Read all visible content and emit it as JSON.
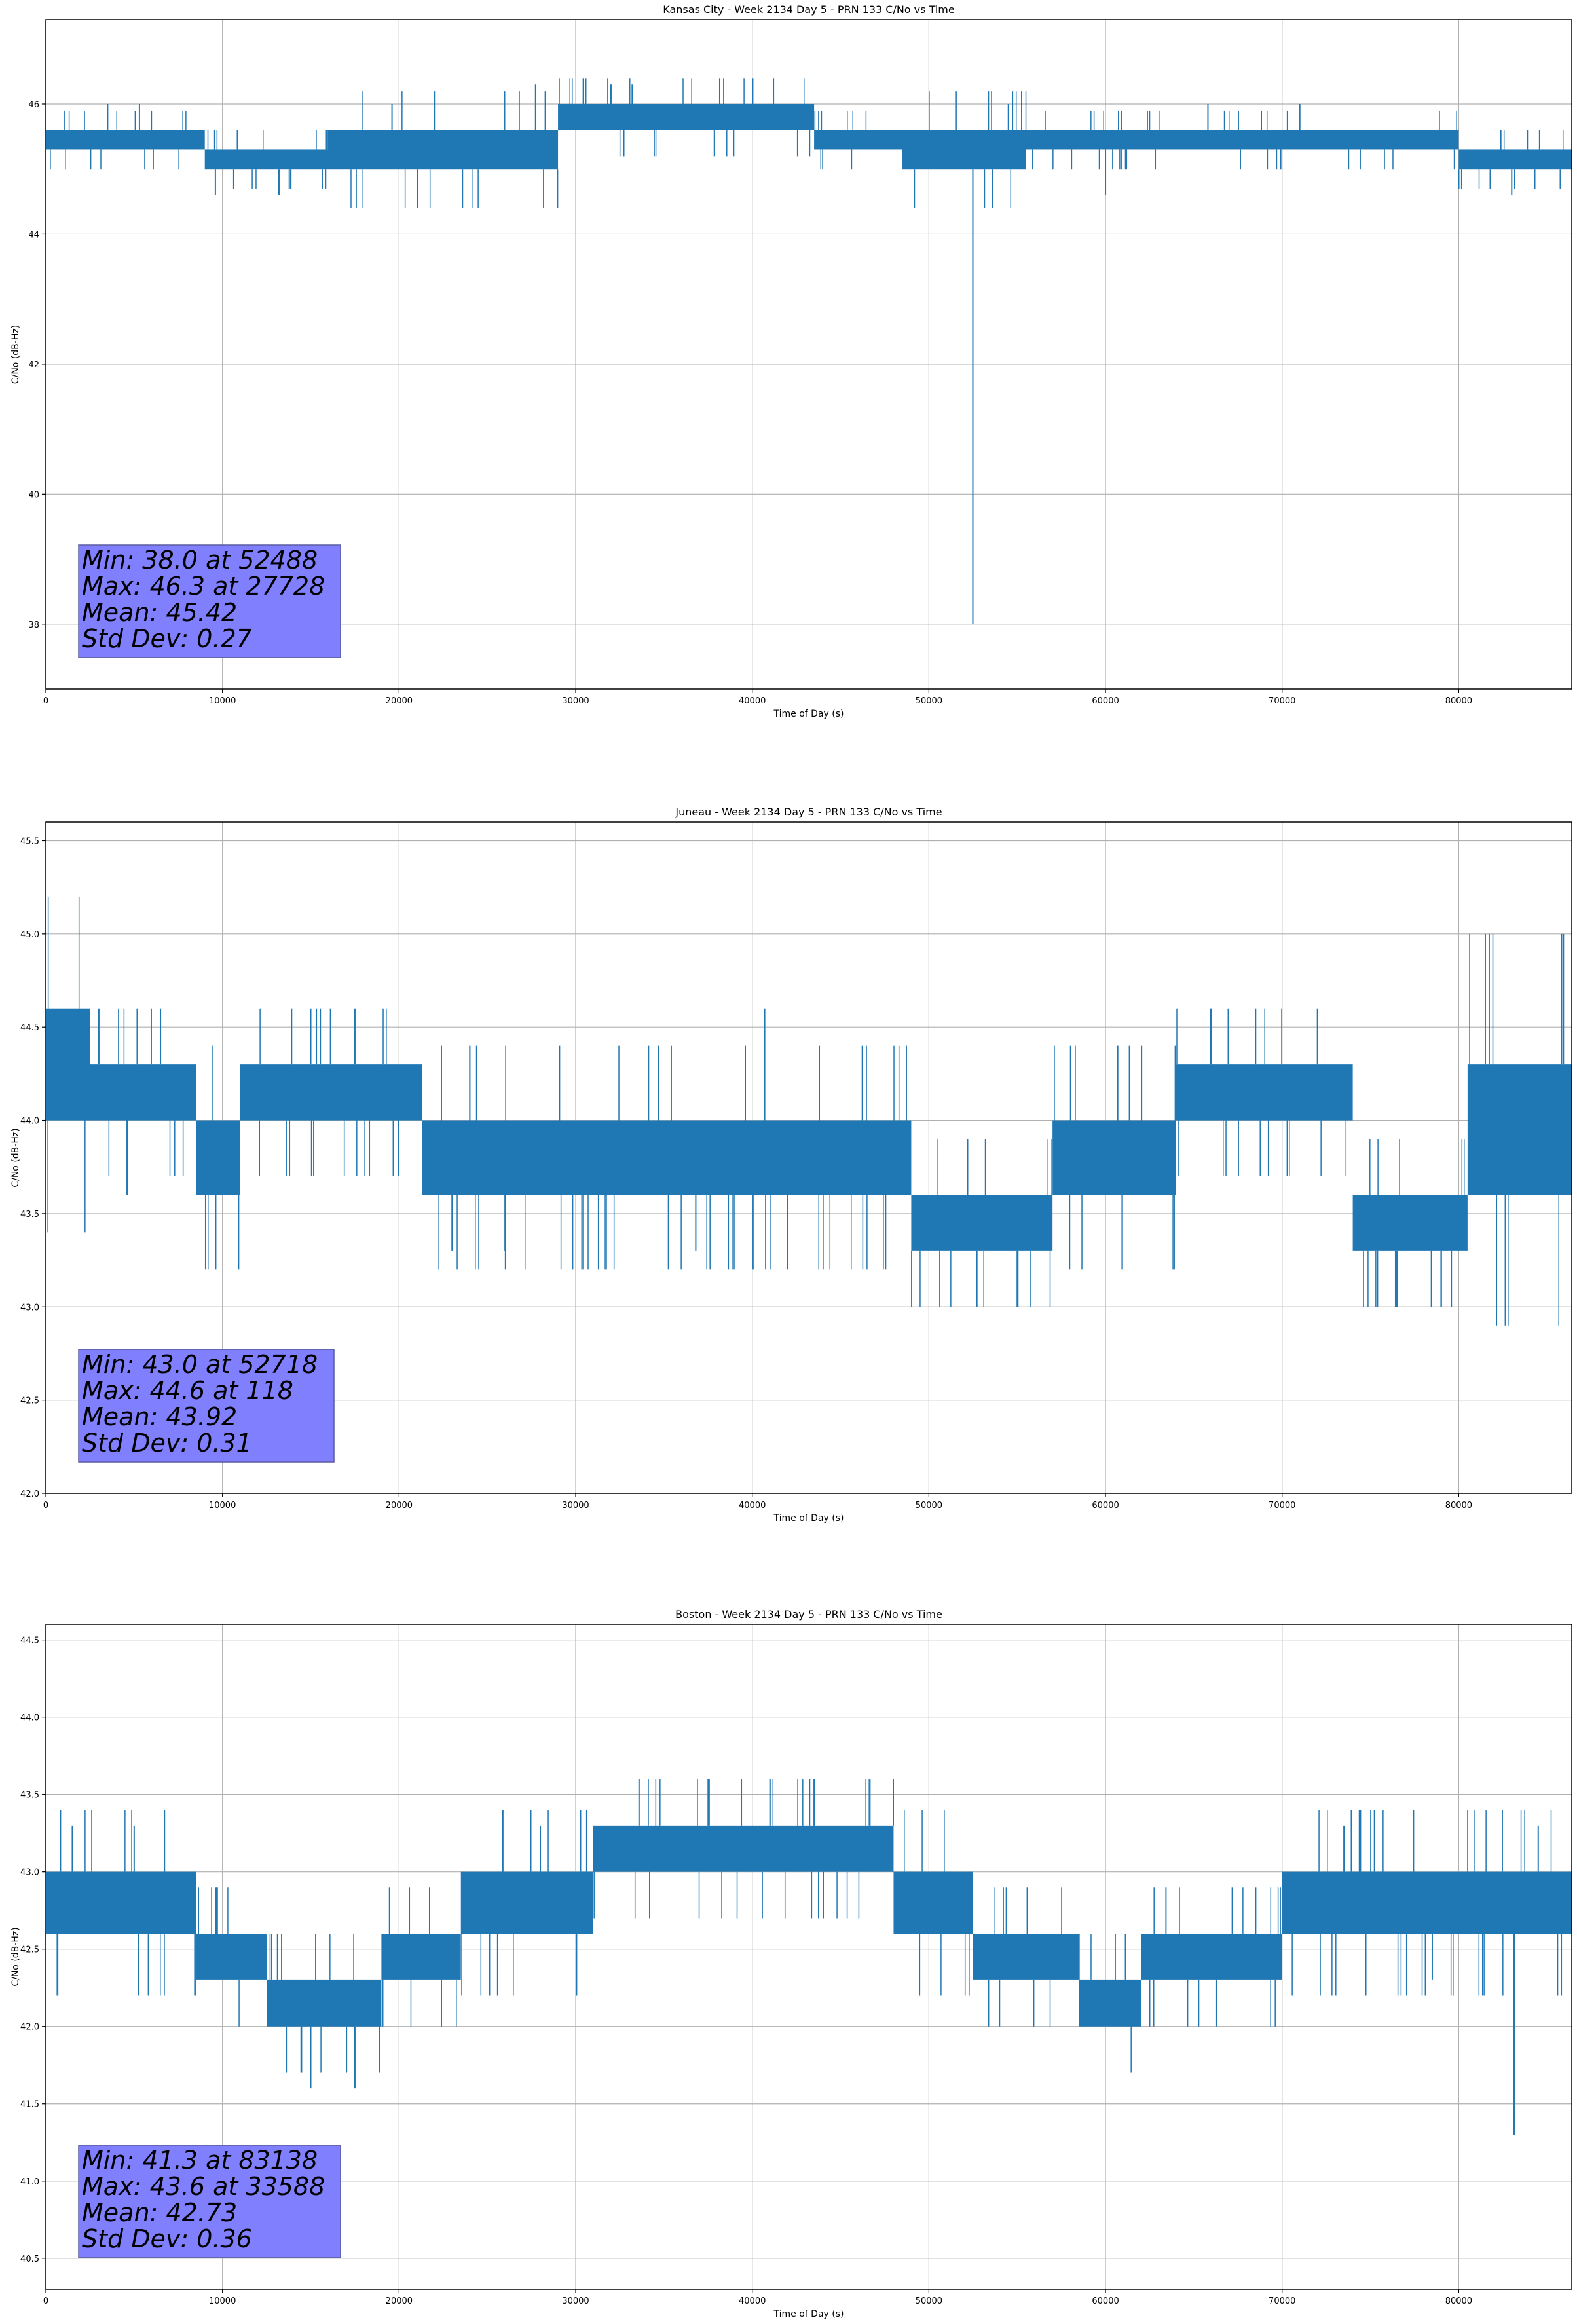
{
  "chart_data": [
    {
      "type": "line",
      "title": "Kansas City - Week 2134 Day 5 - PRN 133 C/No vs Time",
      "xlabel": "Time of Day (s)",
      "ylabel": "C/No (dB-Hz)",
      "xlim": [
        0,
        86400
      ],
      "ylim": [
        37.0,
        47.3
      ],
      "xticks": [
        0,
        10000,
        20000,
        30000,
        40000,
        50000,
        60000,
        70000,
        80000
      ],
      "xtick_labels": [
        "0",
        "10000",
        "20000",
        "30000",
        "40000",
        "50000",
        "60000",
        "70000",
        "80000"
      ],
      "yticks": [
        38,
        40,
        42,
        44,
        46
      ],
      "ytick_labels": [
        "38",
        "40",
        "42",
        "44",
        "46"
      ],
      "grid": true,
      "series": [
        {
          "color": "#1f77b4",
          "bands": [
            {
              "x0": 0,
              "x1": 9000,
              "lo": 45.3,
              "hi": 45.6
            },
            {
              "x0": 9000,
              "x1": 16000,
              "lo": 45.0,
              "hi": 45.3
            },
            {
              "x0": 16000,
              "x1": 29000,
              "lo": 45.0,
              "hi": 45.6
            },
            {
              "x0": 29000,
              "x1": 43500,
              "lo": 45.6,
              "hi": 46.0
            },
            {
              "x0": 43500,
              "x1": 48500,
              "lo": 45.3,
              "hi": 45.6
            },
            {
              "x0": 48500,
              "x1": 55500,
              "lo": 45.0,
              "hi": 45.6
            },
            {
              "x0": 55500,
              "x1": 80000,
              "lo": 45.3,
              "hi": 45.6
            },
            {
              "x0": 80000,
              "x1": 86400,
              "lo": 45.0,
              "hi": 45.3
            }
          ],
          "spikes": [
            {
              "x": 52488,
              "y": 38.0
            },
            {
              "x": 27728,
              "y": 46.3
            },
            {
              "x": 3500,
              "y": 46.0
            },
            {
              "x": 5300,
              "y": 46.0
            },
            {
              "x": 9600,
              "y": 44.6
            },
            {
              "x": 13200,
              "y": 44.6
            },
            {
              "x": 19600,
              "y": 46.0
            },
            {
              "x": 32000,
              "y": 46.3
            },
            {
              "x": 33200,
              "y": 46.3
            },
            {
              "x": 54500,
              "y": 46.0
            },
            {
              "x": 60000,
              "y": 44.6
            },
            {
              "x": 65800,
              "y": 46.0
            },
            {
              "x": 71000,
              "y": 46.0
            },
            {
              "x": 83000,
              "y": 44.6
            }
          ]
        }
      ],
      "annotation": [
        "Min: 38.0 at 52488",
        "Max: 46.3 at 27728",
        "Mean: 45.42",
        "Std Dev: 0.27"
      ]
    },
    {
      "type": "line",
      "title": "Juneau - Week 2134 Day 5 - PRN 133 C/No vs Time",
      "xlabel": "Time of Day (s)",
      "ylabel": "C/No (dB-Hz)",
      "xlim": [
        0,
        86400
      ],
      "ylim": [
        42.0,
        45.6
      ],
      "xticks": [
        0,
        10000,
        20000,
        30000,
        40000,
        50000,
        60000,
        70000,
        80000
      ],
      "xtick_labels": [
        "0",
        "10000",
        "20000",
        "30000",
        "40000",
        "50000",
        "60000",
        "70000",
        "80000"
      ],
      "yticks": [
        42.0,
        42.5,
        43.0,
        43.5,
        44.0,
        44.5,
        45.0,
        45.5
      ],
      "ytick_labels": [
        "42.0",
        "42.5",
        "43.0",
        "43.5",
        "44.0",
        "44.5",
        "45.0",
        "45.5"
      ],
      "grid": true,
      "series": [
        {
          "color": "#1f77b4",
          "bands": [
            {
              "x0": 0,
              "x1": 2500,
              "lo": 44.0,
              "hi": 44.6
            },
            {
              "x0": 2500,
              "x1": 8500,
              "lo": 44.0,
              "hi": 44.3
            },
            {
              "x0": 8500,
              "x1": 11000,
              "lo": 43.6,
              "hi": 44.0
            },
            {
              "x0": 11000,
              "x1": 21300,
              "lo": 44.0,
              "hi": 44.3
            },
            {
              "x0": 21300,
              "x1": 40000,
              "lo": 43.6,
              "hi": 44.0
            },
            {
              "x0": 40000,
              "x1": 49000,
              "lo": 43.6,
              "hi": 44.0
            },
            {
              "x0": 49000,
              "x1": 57000,
              "lo": 43.3,
              "hi": 43.6
            },
            {
              "x0": 57000,
              "x1": 64000,
              "lo": 43.6,
              "hi": 44.0
            },
            {
              "x0": 64000,
              "x1": 74000,
              "lo": 44.0,
              "hi": 44.3
            },
            {
              "x0": 74000,
              "x1": 80500,
              "lo": 43.3,
              "hi": 43.6
            },
            {
              "x0": 80500,
              "x1": 86400,
              "lo": 43.6,
              "hi": 44.3
            }
          ],
          "spikes": [
            {
              "x": 52718,
              "y": 43.0
            },
            {
              "x": 118,
              "y": 44.6
            },
            {
              "x": 3000,
              "y": 44.6
            },
            {
              "x": 4600,
              "y": 43.6
            },
            {
              "x": 15000,
              "y": 44.6
            },
            {
              "x": 17500,
              "y": 44.6
            },
            {
              "x": 23000,
              "y": 43.3
            },
            {
              "x": 26000,
              "y": 43.3
            },
            {
              "x": 40700,
              "y": 44.6
            },
            {
              "x": 36800,
              "y": 43.3
            },
            {
              "x": 55000,
              "y": 43.0
            },
            {
              "x": 66000,
              "y": 44.6
            },
            {
              "x": 68500,
              "y": 44.6
            },
            {
              "x": 72000,
              "y": 44.6
            },
            {
              "x": 76500,
              "y": 43.0
            },
            {
              "x": 79000,
              "y": 43.0
            }
          ]
        }
      ],
      "annotation": [
        "Min: 43.0 at 52718",
        "Max: 44.6 at 118",
        "Mean: 43.92",
        "Std Dev: 0.31"
      ]
    },
    {
      "type": "line",
      "title": "Boston - Week 2134 Day 5 - PRN 133 C/No vs Time",
      "xlabel": "Time of Day (s)",
      "ylabel": "C/No (dB-Hz)",
      "xlim": [
        0,
        86400
      ],
      "ylim": [
        40.3,
        44.6
      ],
      "xticks": [
        0,
        10000,
        20000,
        30000,
        40000,
        50000,
        60000,
        70000,
        80000
      ],
      "xtick_labels": [
        "0",
        "10000",
        "20000",
        "30000",
        "40000",
        "50000",
        "60000",
        "70000",
        "80000"
      ],
      "yticks": [
        40.5,
        41.0,
        41.5,
        42.0,
        42.5,
        43.0,
        43.5,
        44.0,
        44.5
      ],
      "ytick_labels": [
        "40.5",
        "41.0",
        "41.5",
        "42.0",
        "42.5",
        "43.0",
        "43.5",
        "44.0",
        "44.5"
      ],
      "grid": true,
      "series": [
        {
          "color": "#1f77b4",
          "bands": [
            {
              "x0": 0,
              "x1": 8500,
              "lo": 42.6,
              "hi": 43.0
            },
            {
              "x0": 8500,
              "x1": 12500,
              "lo": 42.3,
              "hi": 42.6
            },
            {
              "x0": 12500,
              "x1": 19000,
              "lo": 42.0,
              "hi": 42.3
            },
            {
              "x0": 19000,
              "x1": 23500,
              "lo": 42.3,
              "hi": 42.6
            },
            {
              "x0": 23500,
              "x1": 31000,
              "lo": 42.6,
              "hi": 43.0
            },
            {
              "x0": 31000,
              "x1": 48000,
              "lo": 43.0,
              "hi": 43.3
            },
            {
              "x0": 48000,
              "x1": 52500,
              "lo": 42.6,
              "hi": 43.0
            },
            {
              "x0": 52500,
              "x1": 58500,
              "lo": 42.3,
              "hi": 42.6
            },
            {
              "x0": 58500,
              "x1": 62000,
              "lo": 42.0,
              "hi": 42.3
            },
            {
              "x0": 62000,
              "x1": 70000,
              "lo": 42.3,
              "hi": 42.6
            },
            {
              "x0": 70000,
              "x1": 86400,
              "lo": 42.6,
              "hi": 43.0
            }
          ],
          "spikes": [
            {
              "x": 83138,
              "y": 41.3
            },
            {
              "x": 33588,
              "y": 43.6
            },
            {
              "x": 1500,
              "y": 43.3
            },
            {
              "x": 5000,
              "y": 43.3
            },
            {
              "x": 15000,
              "y": 41.6
            },
            {
              "x": 17500,
              "y": 41.6
            },
            {
              "x": 28000,
              "y": 43.3
            },
            {
              "x": 37500,
              "y": 43.6
            },
            {
              "x": 41000,
              "y": 43.6
            },
            {
              "x": 43500,
              "y": 43.6
            },
            {
              "x": 47500,
              "y": 43.3
            },
            {
              "x": 54000,
              "y": 42.0
            },
            {
              "x": 62500,
              "y": 42.0
            },
            {
              "x": 73500,
              "y": 43.3
            },
            {
              "x": 78500,
              "y": 42.3
            },
            {
              "x": 84500,
              "y": 43.3
            }
          ]
        }
      ],
      "annotation": [
        "Min: 41.3 at 83138",
        "Max: 43.6 at 33588",
        "Mean: 42.73",
        "Std Dev: 0.36"
      ]
    }
  ],
  "colors": {
    "line": "#1f77b4",
    "grid": "#b0b0b0",
    "axes": "#000000",
    "stats_box_fill": "#8080ff",
    "stats_box_edge": "#5a5aa0"
  }
}
